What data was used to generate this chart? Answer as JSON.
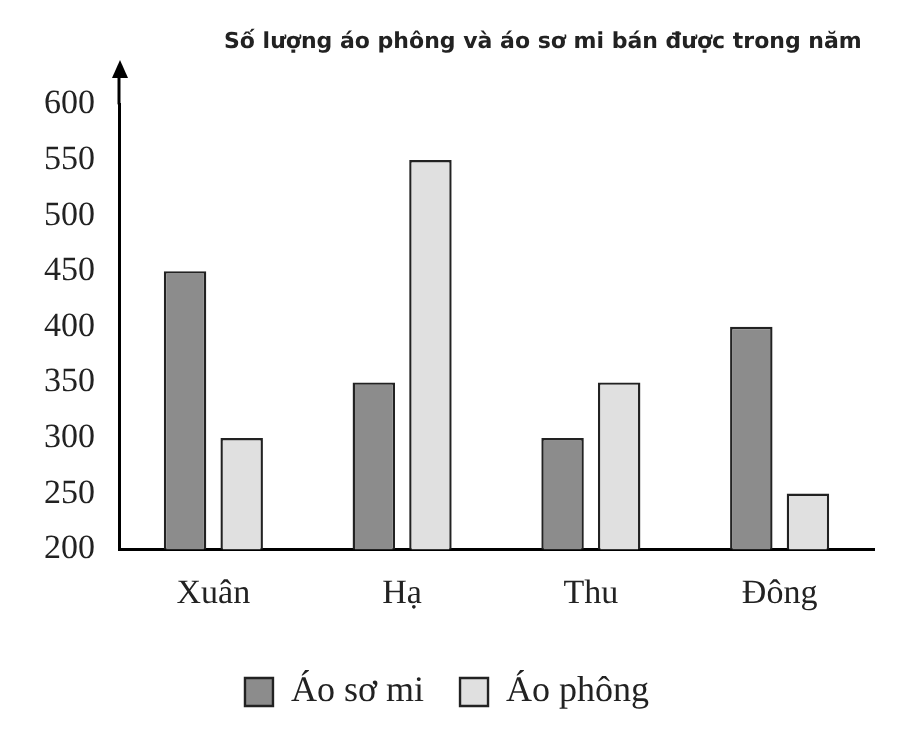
{
  "chart_data": {
    "type": "bar",
    "title": "Số lượng áo phông và áo sơ mi bán được trong năm",
    "categories": [
      "Xuân",
      "Hạ",
      "Thu",
      "Đông"
    ],
    "series": [
      {
        "name": "Áo sơ mi",
        "color": "#8c8c8c",
        "values": [
          450,
          350,
          300,
          400
        ]
      },
      {
        "name": "Áo phông",
        "color": "#e0e0e0",
        "values": [
          300,
          550,
          350,
          250
        ]
      }
    ],
    "ylim": [
      200,
      600
    ],
    "yticks": [
      200,
      250,
      300,
      350,
      400,
      450,
      500,
      550,
      600
    ],
    "grid": false,
    "legend": "bottom"
  }
}
